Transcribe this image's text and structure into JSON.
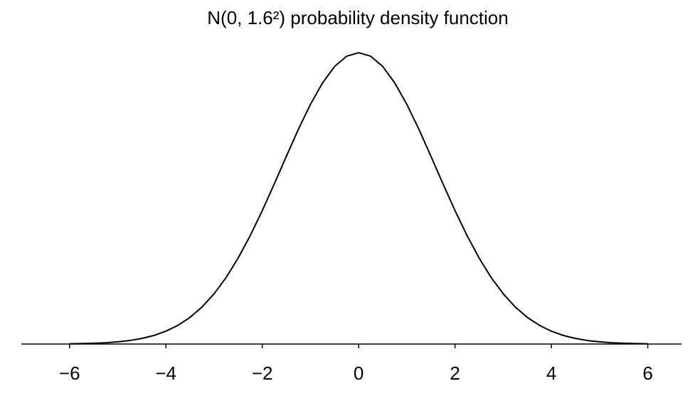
{
  "chart_data": {
    "type": "line",
    "title": "N(0, 1.6²) probability density function",
    "x": [
      -6,
      -5.75,
      -5.5,
      -5.25,
      -5,
      -4.75,
      -4.5,
      -4.25,
      -4,
      -3.75,
      -3.5,
      -3.25,
      -3,
      -2.75,
      -2.5,
      -2.25,
      -2,
      -1.75,
      -1.5,
      -1.25,
      -1,
      -0.75,
      -0.5,
      -0.25,
      0,
      0.25,
      0.5,
      0.75,
      1,
      1.25,
      1.5,
      1.75,
      2,
      2.25,
      2.5,
      2.75,
      3,
      3.25,
      3.5,
      3.75,
      4,
      4.25,
      4.5,
      4.75,
      5,
      5.25,
      5.5,
      5.75,
      6
    ],
    "values": [
      0.0002,
      0.0004,
      0.0007,
      0.0011,
      0.0019,
      0.003,
      0.0048,
      0.0073,
      0.011,
      0.016,
      0.0228,
      0.0317,
      0.043,
      0.0569,
      0.0736,
      0.0928,
      0.1142,
      0.1371,
      0.1607,
      0.1838,
      0.2051,
      0.2234,
      0.2375,
      0.2463,
      0.2493,
      0.2463,
      0.2375,
      0.2234,
      0.2051,
      0.1838,
      0.1607,
      0.1371,
      0.1142,
      0.0928,
      0.0736,
      0.0569,
      0.043,
      0.0317,
      0.0228,
      0.016,
      0.011,
      0.0073,
      0.0048,
      0.003,
      0.0019,
      0.0011,
      0.0007,
      0.0004,
      0.0002
    ],
    "color": "#000000",
    "xlim": [
      -7,
      6.7
    ],
    "xticks": [
      {
        "value": -6,
        "label": "−6"
      },
      {
        "value": -4,
        "label": "−4"
      },
      {
        "value": -2,
        "label": "−2"
      },
      0,
      2,
      4,
      6
    ],
    "ylim": [
      0,
      0.25
    ]
  }
}
